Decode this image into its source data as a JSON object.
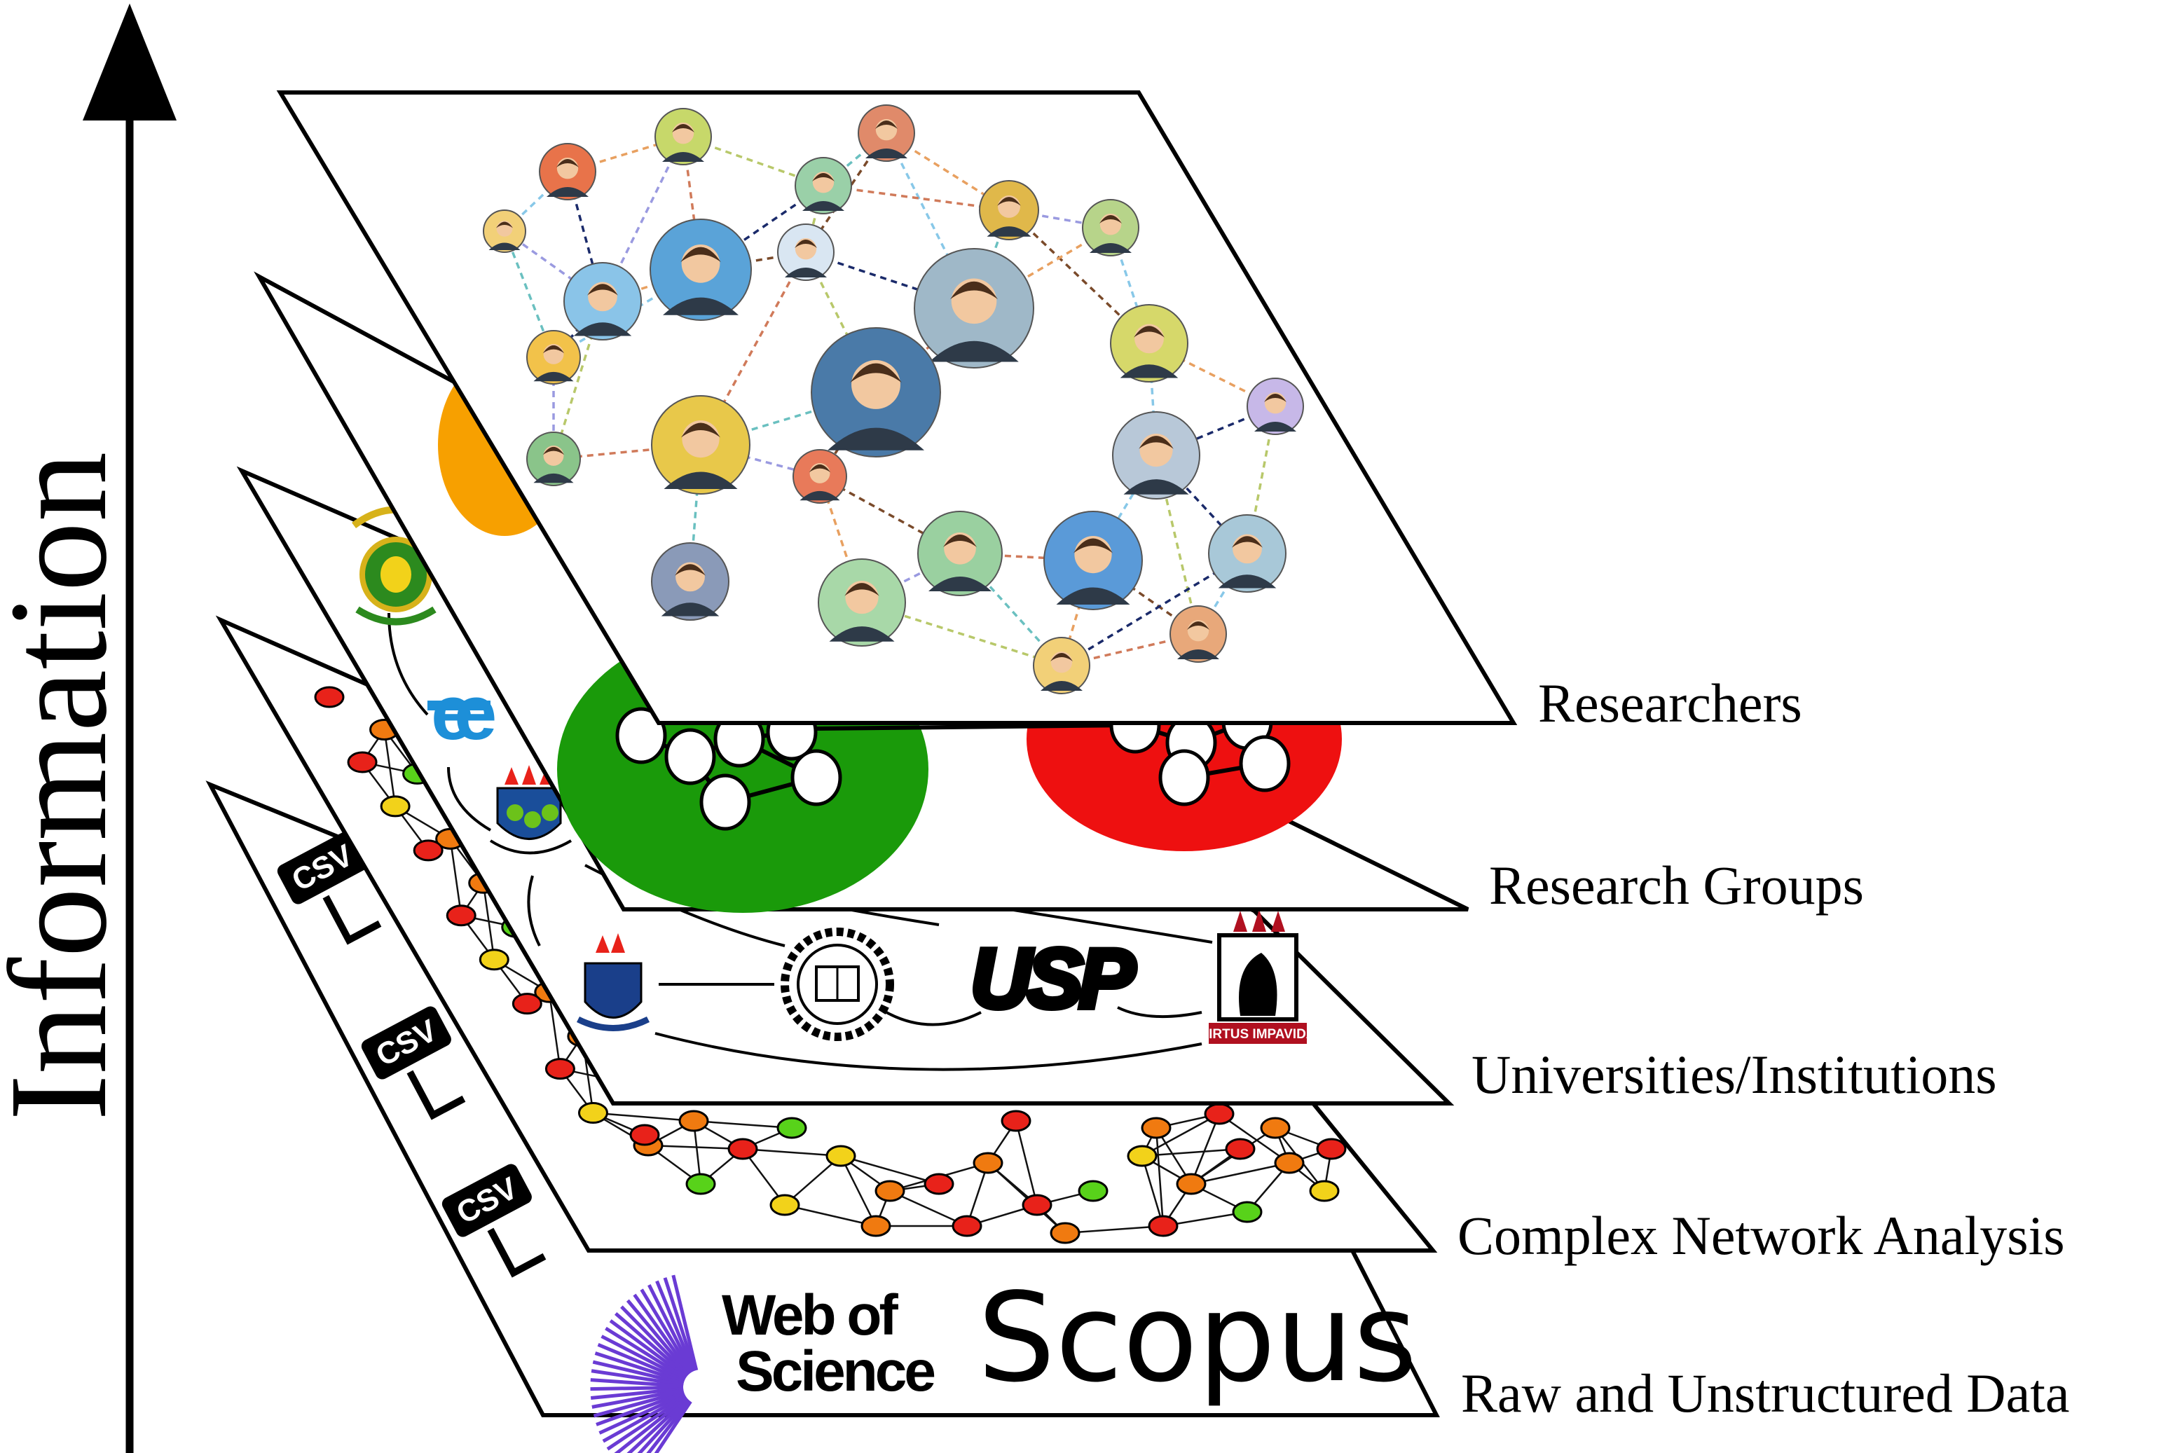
{
  "axis": {
    "label": "Information"
  },
  "layers": [
    {
      "label": "Researchers"
    },
    {
      "label": "Research Groups"
    },
    {
      "label": "Universities/Institutions"
    },
    {
      "label": "Complex Network Analysis"
    },
    {
      "label": "Raw and Unstructured Data"
    }
  ],
  "raw_data": {
    "sources": [
      "Web of",
      "Science",
      "Scopus"
    ],
    "file_format": "CSV"
  },
  "institutions": {
    "usp": "USP",
    "ufpe_motto": "VIRTUS IMPAVIDA"
  },
  "colors": {
    "group_green": "#1a9a0a",
    "group_red": "#ee1010",
    "group_orange": "#f7a000",
    "wos_purple": "#6a3bd4",
    "ceub_blue": "#1d8fd8",
    "node_red": "#e8221a",
    "node_orange": "#f07a10",
    "node_yellow": "#f2d21a",
    "node_green": "#58d21a"
  }
}
